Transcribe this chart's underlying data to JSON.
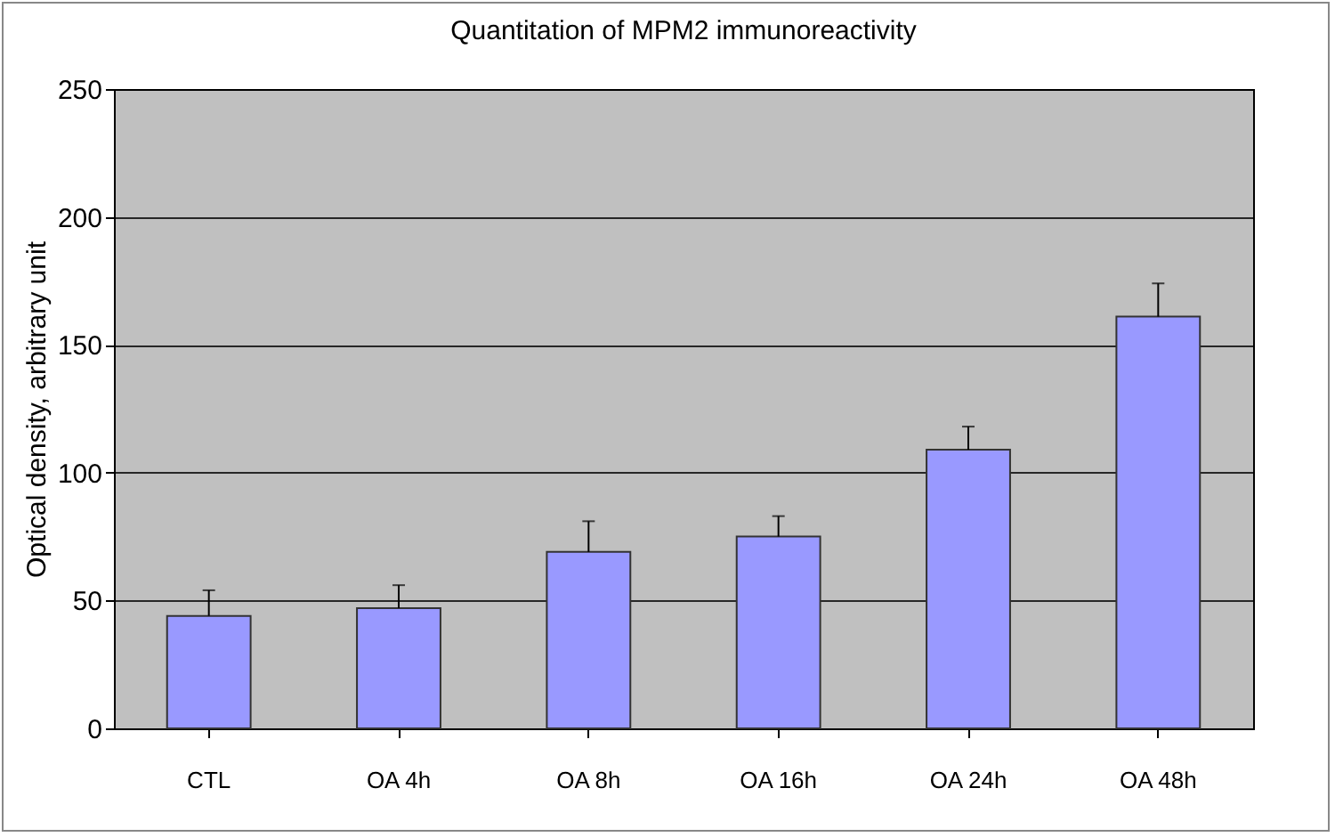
{
  "chart_data": {
    "type": "bar",
    "title": "Quantitation of MPM2 immunoreactivity",
    "ylabel": "Optical density, arbitrary unit",
    "categories": [
      "CTL",
      "OA 4h",
      "OA 8h",
      "OA 16h",
      "OA 24h",
      "OA 48h"
    ],
    "values": [
      44,
      47,
      69,
      75,
      109,
      161
    ],
    "errors": [
      [
        44,
        54
      ],
      [
        47,
        56
      ],
      [
        69,
        81
      ],
      [
        75,
        83
      ],
      [
        109,
        118
      ],
      [
        161,
        174
      ]
    ],
    "color": "#9999ff",
    "ylim": [
      0,
      250
    ],
    "yticks": [
      0,
      50,
      100,
      150,
      200,
      250
    ],
    "grid": "y"
  }
}
